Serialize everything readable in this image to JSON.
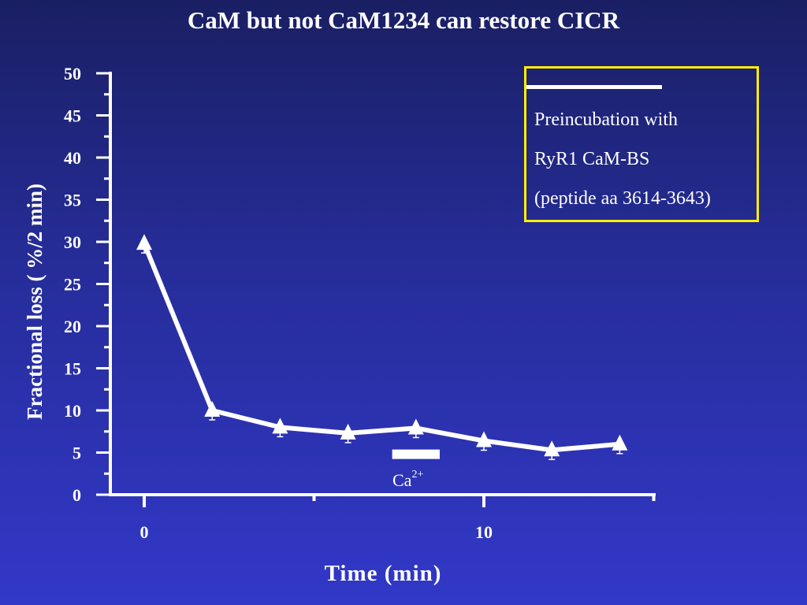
{
  "title": "CaM but not CaM1234 can restore CICR",
  "legend": {
    "line1": "Preincubation with",
    "line2": "RyR1  CaM-BS",
    "line3": "(peptide aa 3614-3643)",
    "border_color": "#ffee00"
  },
  "annotation": {
    "base": "Ca",
    "superscript": "2+"
  },
  "chart_data": {
    "type": "line",
    "title": "CaM but not CaM1234 can restore CICR",
    "xlabel": "Time (min)",
    "ylabel": "Fractional loss ( %/2 min)",
    "xlim": [
      -0.5,
      15
    ],
    "ylim": [
      0,
      50
    ],
    "x_ticks": [
      0,
      10
    ],
    "y_ticks": [
      0,
      5,
      10,
      15,
      20,
      25,
      30,
      35,
      40,
      45,
      50
    ],
    "series": [
      {
        "marker": "triangle",
        "color": "#ffffff",
        "x": [
          0,
          2,
          4,
          6,
          8,
          10,
          12,
          14
        ],
        "y": [
          29.8,
          10,
          8,
          7.3,
          7.9,
          6.4,
          5.3,
          6
        ]
      }
    ],
    "ca_bar": {
      "x_start": 7.3,
      "x_end": 8.7,
      "y": 4.8
    },
    "grid": false
  }
}
